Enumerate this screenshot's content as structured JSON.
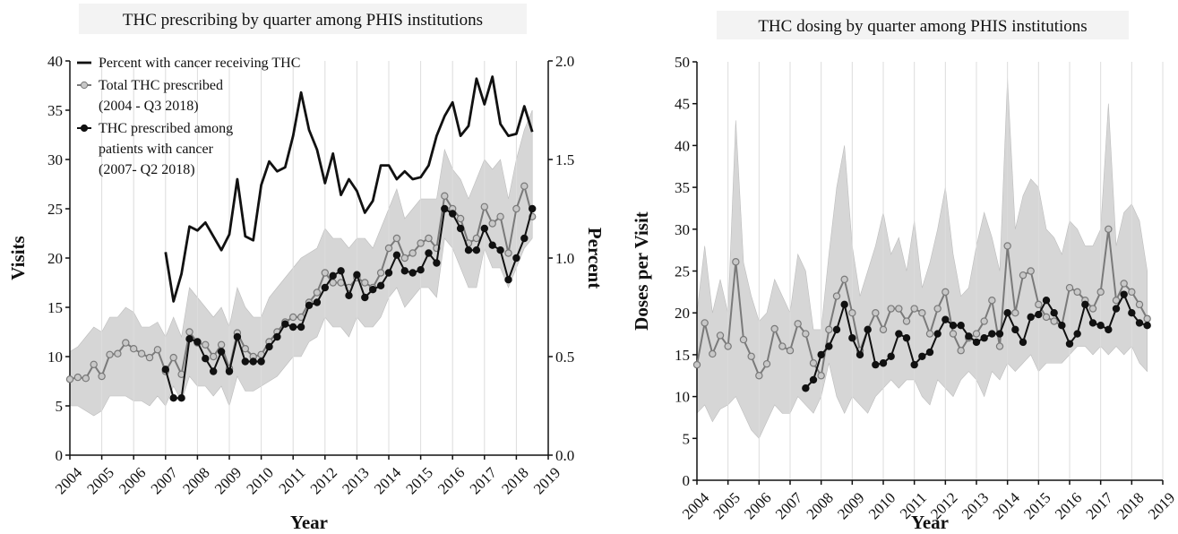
{
  "chart_data": [
    {
      "type": "line",
      "title": "THC prescribing by quarter among PHIS institutions",
      "xlabel": "Year",
      "ylabel": "Visits",
      "y2label": "Percent",
      "xlim": [
        2004,
        2019
      ],
      "xticks": [
        2004,
        2005,
        2006,
        2007,
        2008,
        2009,
        2010,
        2011,
        2012,
        2013,
        2014,
        2015,
        2016,
        2017,
        2018,
        2019
      ],
      "ylim": [
        0,
        40
      ],
      "yticks": [
        0,
        5,
        10,
        15,
        20,
        25,
        30,
        35,
        40
      ],
      "y2lim": [
        0,
        2
      ],
      "y2ticks": [
        {
          "value": 0,
          "label": "0.0"
        },
        0.5,
        {
          "value": 1,
          "label": "1.0"
        },
        1.5,
        {
          "value": 2,
          "label": "2.0"
        }
      ],
      "grid": true,
      "legend": "upper left",
      "x": [
        2004,
        2004.25,
        2004.5,
        2004.75,
        2005,
        2005.25,
        2005.5,
        2005.75,
        2006,
        2006.25,
        2006.5,
        2006.75,
        2007,
        2007.25,
        2007.5,
        2007.75,
        2008,
        2008.25,
        2008.5,
        2008.75,
        2009,
        2009.25,
        2009.5,
        2009.75,
        2010,
        2010.25,
        2010.5,
        2010.75,
        2011,
        2011.25,
        2011.5,
        2011.75,
        2012,
        2012.25,
        2012.5,
        2012.75,
        2013,
        2013.25,
        2013.5,
        2013.75,
        2014,
        2014.25,
        2014.5,
        2014.75,
        2015,
        2015.25,
        2015.5,
        2015.75,
        2016,
        2016.25,
        2016.5,
        2016.75,
        2017,
        2017.25,
        2017.5,
        2017.75,
        2018,
        2018.25,
        2018.5
      ],
      "band": {
        "color": "#d6d6d6",
        "lower": [
          5,
          5,
          4.5,
          4,
          4.5,
          6,
          6,
          6,
          5.5,
          5.5,
          5,
          6,
          5,
          7,
          5.5,
          8,
          7,
          7,
          6,
          7,
          5,
          8,
          6.5,
          6.5,
          7,
          7.5,
          8,
          9,
          10,
          10,
          11.5,
          12,
          14,
          13,
          13,
          12,
          14,
          13,
          13,
          14,
          16,
          17,
          15,
          16,
          17,
          17,
          16,
          22,
          21,
          19,
          17,
          17,
          21,
          19,
          19,
          17,
          19,
          21,
          22
        ],
        "upper": [
          10.5,
          11,
          12,
          13,
          12.5,
          14,
          14,
          15,
          14.5,
          13,
          13,
          13.5,
          12,
          14,
          12,
          17,
          16,
          15,
          14,
          15,
          13,
          17,
          15,
          14,
          14,
          16,
          17,
          18,
          19,
          20,
          20.5,
          21,
          23,
          22,
          22,
          21,
          22,
          22,
          21,
          23,
          25,
          27,
          24,
          25,
          26,
          26,
          26,
          31,
          29,
          28,
          26,
          28,
          30,
          29,
          30,
          26,
          30,
          33,
          35
        ]
      },
      "series": [
        {
          "name": "Percent with cancer receiving THC",
          "color": "#111111",
          "axis": "y2",
          "markers": false,
          "values": [
            null,
            null,
            null,
            null,
            null,
            null,
            null,
            null,
            null,
            null,
            null,
            null,
            1.03,
            0.78,
            0.92,
            1.16,
            1.14,
            1.18,
            1.11,
            1.04,
            1.12,
            1.4,
            1.11,
            1.09,
            1.37,
            1.49,
            1.44,
            1.46,
            1.62,
            1.84,
            1.65,
            1.55,
            1.38,
            1.53,
            1.32,
            1.4,
            1.34,
            1.23,
            1.29,
            1.47,
            1.47,
            1.4,
            1.44,
            1.4,
            1.41,
            1.47,
            1.62,
            1.72,
            1.79,
            1.62,
            1.67,
            1.91,
            1.78,
            1.92,
            1.68,
            1.62,
            1.63,
            1.77,
            1.64
          ]
        },
        {
          "name": "Total THC prescribed\n(2004 - Q3 2018)",
          "color": "#7a7a7a",
          "markers": true,
          "marker_fill": "#c8c8c8",
          "values": [
            7.7,
            7.9,
            7.8,
            9.2,
            8,
            10.2,
            10.3,
            11.4,
            10.8,
            10.3,
            9.9,
            10.7,
            8.5,
            9.9,
            8.2,
            12.5,
            11.4,
            11.2,
            10,
            11.2,
            8.8,
            12.4,
            10.8,
            10,
            10.2,
            11.5,
            12.5,
            13.5,
            14,
            14,
            15.5,
            16.5,
            18.5,
            17.5,
            17.5,
            17,
            18,
            17.5,
            17,
            18.5,
            21,
            22,
            20,
            20.5,
            21.5,
            22,
            21,
            26.3,
            25,
            24,
            21.5,
            22,
            25.2,
            23.5,
            24.2,
            20.5,
            25,
            27.3,
            24.2
          ]
        },
        {
          "name": "THC prescribed among\npatients with cancer\n(2007- Q2 2018)",
          "color": "#111111",
          "markers": true,
          "marker_fill": "#111111",
          "values": [
            null,
            null,
            null,
            null,
            null,
            null,
            null,
            null,
            null,
            null,
            null,
            null,
            8.7,
            5.8,
            5.8,
            11.8,
            11.5,
            9.8,
            8.5,
            10.5,
            8.5,
            12,
            9.5,
            9.5,
            9.5,
            11,
            12,
            13.3,
            13,
            13,
            15.2,
            15.5,
            17,
            18.2,
            18.7,
            16.2,
            18.3,
            16,
            16.8,
            17.2,
            18.5,
            20.3,
            18.7,
            18.5,
            18.8,
            20.5,
            19.5,
            25,
            24.5,
            23,
            20.8,
            20.8,
            23,
            21.3,
            20.8,
            17.8,
            20,
            22,
            25
          ]
        }
      ]
    },
    {
      "type": "line",
      "title": "THC dosing by quarter among PHIS institutions",
      "xlabel": "Year",
      "ylabel": "Doses per Visit",
      "xlim": [
        2004,
        2019
      ],
      "xticks": [
        2004,
        2005,
        2006,
        2007,
        2008,
        2009,
        2010,
        2011,
        2012,
        2013,
        2014,
        2015,
        2016,
        2017,
        2018,
        2019
      ],
      "ylim": [
        0,
        50
      ],
      "yticks": [
        0,
        5,
        10,
        15,
        20,
        25,
        30,
        35,
        40,
        45,
        50
      ],
      "grid": true,
      "x": [
        2004,
        2004.25,
        2004.5,
        2004.75,
        2005,
        2005.25,
        2005.5,
        2005.75,
        2006,
        2006.25,
        2006.5,
        2006.75,
        2007,
        2007.25,
        2007.5,
        2007.75,
        2008,
        2008.25,
        2008.5,
        2008.75,
        2009,
        2009.25,
        2009.5,
        2009.75,
        2010,
        2010.25,
        2010.5,
        2010.75,
        2011,
        2011.25,
        2011.5,
        2011.75,
        2012,
        2012.25,
        2012.5,
        2012.75,
        2013,
        2013.25,
        2013.5,
        2013.75,
        2014,
        2014.25,
        2014.5,
        2014.75,
        2015,
        2015.25,
        2015.5,
        2015.75,
        2016,
        2016.25,
        2016.5,
        2016.75,
        2017,
        2017.25,
        2017.5,
        2017.75,
        2018,
        2018.25,
        2018.5
      ],
      "band": {
        "color": "#d6d6d6",
        "lower": [
          8,
          9,
          7,
          8.5,
          9,
          10,
          8,
          6,
          5,
          7,
          9,
          8,
          8,
          10,
          9,
          8,
          10,
          14,
          10,
          8,
          10,
          9,
          8,
          10,
          11,
          12,
          11,
          12,
          12,
          10,
          9,
          12,
          11,
          10,
          12,
          13,
          12,
          10,
          13,
          12,
          14,
          13,
          14,
          15,
          13,
          14,
          14,
          14,
          15,
          16,
          16,
          15,
          16,
          15,
          16,
          15,
          16,
          14,
          13
        ],
        "upper": [
          20,
          28,
          20,
          24,
          20,
          43,
          26,
          22,
          19,
          20,
          24,
          22,
          20,
          27,
          25,
          18,
          18,
          27,
          35,
          40,
          28,
          22,
          25,
          28,
          32,
          27,
          29,
          25,
          31,
          23,
          26,
          30,
          35,
          27,
          22,
          23,
          28,
          32,
          29,
          25,
          48,
          30,
          34,
          36,
          35,
          30,
          29,
          27,
          31,
          30,
          28,
          28,
          30,
          45,
          28,
          32,
          33,
          31,
          25
        ]
      },
      "series": [
        {
          "color": "#7a7a7a",
          "markers": true,
          "marker_fill": "#c8c8c8",
          "values": [
            13.8,
            18.8,
            15.1,
            17.3,
            16,
            26.1,
            16.8,
            14.8,
            12.5,
            13.9,
            18.1,
            16,
            15.5,
            18.7,
            17.5,
            14,
            12.5,
            18,
            22,
            24,
            20,
            15.5,
            18,
            20,
            18,
            20.5,
            20.5,
            19,
            20.5,
            20,
            17.5,
            20.5,
            22.5,
            17.5,
            15.5,
            17,
            17.5,
            19,
            21.5,
            16,
            28,
            20,
            24.5,
            25,
            21,
            19.5,
            19,
            18.5,
            23,
            22.5,
            21.5,
            20.5,
            22.5,
            30,
            21.5,
            23.5,
            22.5,
            21,
            19.3
          ]
        },
        {
          "color": "#111111",
          "markers": true,
          "marker_fill": "#111111",
          "values": [
            null,
            null,
            null,
            null,
            null,
            null,
            null,
            null,
            null,
            null,
            null,
            null,
            null,
            null,
            11,
            12,
            15,
            16,
            18,
            21,
            17,
            15,
            18,
            13.8,
            14,
            14.8,
            17.5,
            17,
            13.8,
            14.8,
            15.3,
            17.5,
            19.2,
            18.5,
            18.5,
            17.2,
            16.5,
            17,
            17.5,
            17.5,
            20,
            18,
            16.5,
            19.5,
            19.8,
            21.5,
            20,
            18.5,
            16.3,
            17.5,
            21,
            18.8,
            18.5,
            18,
            20.5,
            22.2,
            20,
            18.8,
            18.5
          ]
        }
      ]
    }
  ]
}
